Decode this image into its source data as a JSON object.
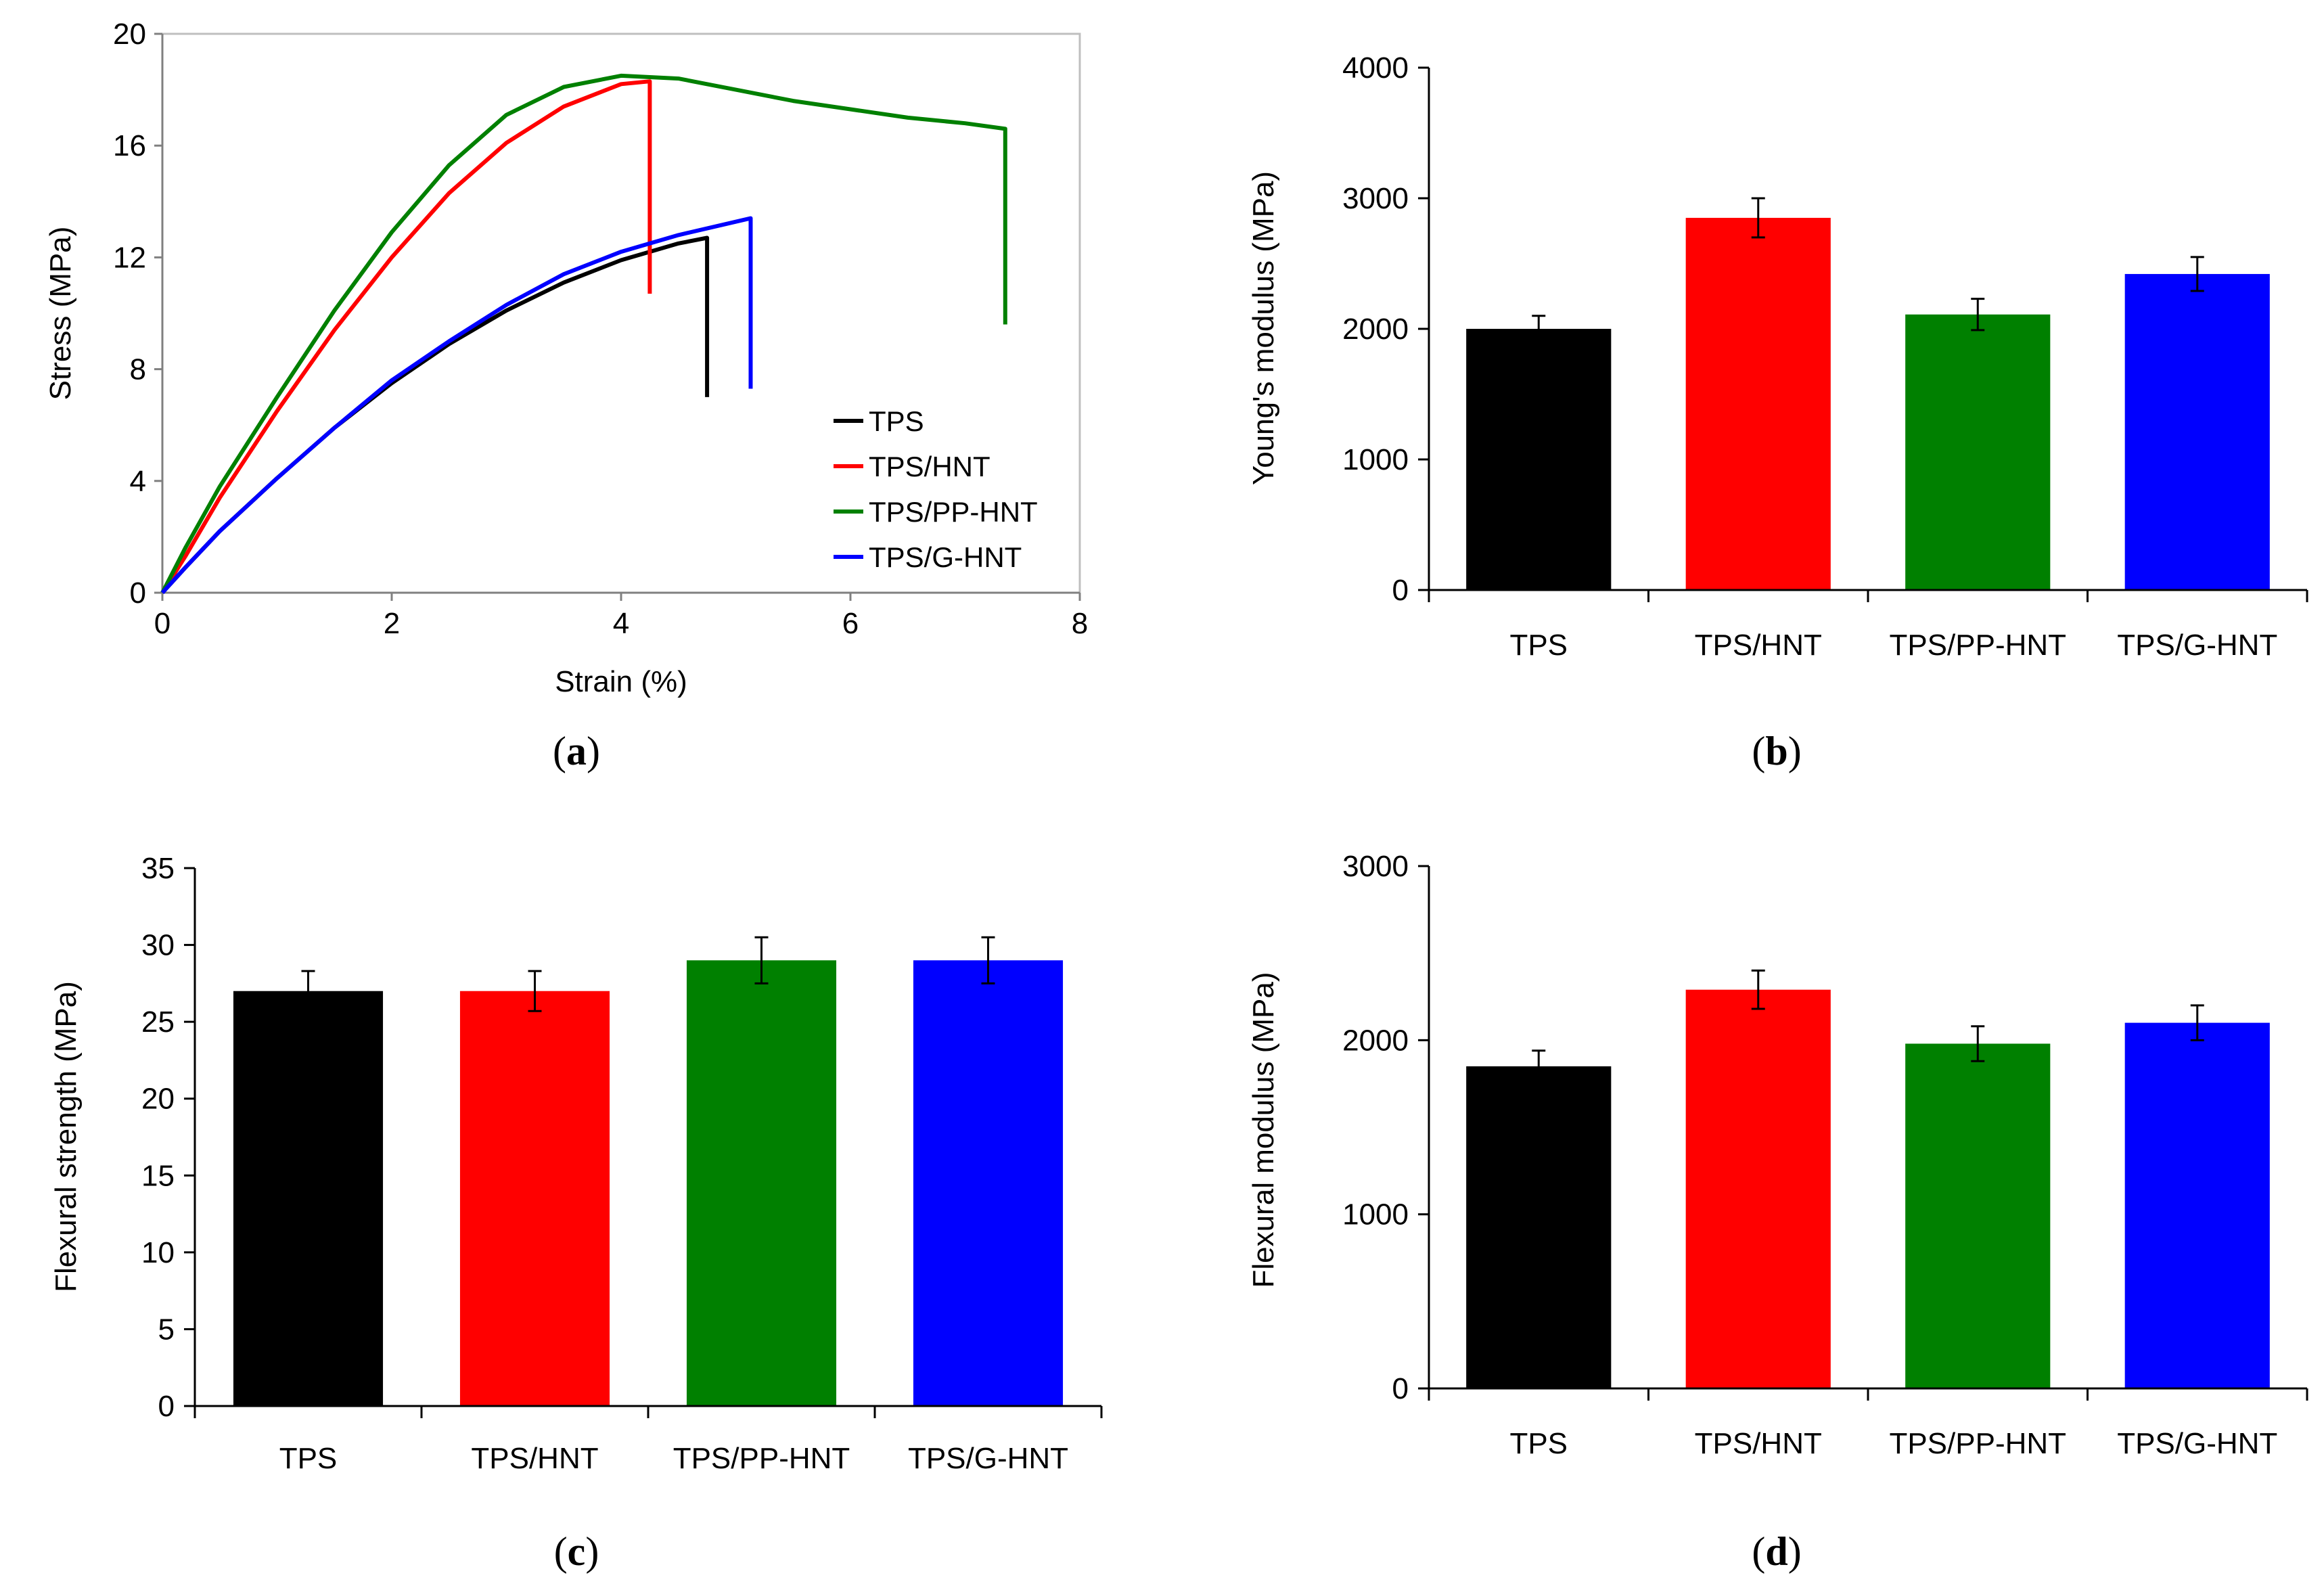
{
  "panel_labels": {
    "a": {
      "open": "(",
      "letter": "a",
      "close": ")"
    },
    "b": {
      "open": "(",
      "letter": "b",
      "close": ")"
    },
    "c": {
      "open": "(",
      "letter": "c",
      "close": ")"
    },
    "d": {
      "open": "(",
      "letter": "d",
      "close": ")"
    }
  },
  "colors": {
    "TPS": "#000000",
    "TPS/HNT": "#ff0000",
    "TPS/PP-HNT": "#008000",
    "TPS/G-HNT": "#0000ff"
  },
  "chart_data": [
    {
      "id": "a",
      "type": "line",
      "title": "",
      "xlabel": "Strain (%)",
      "ylabel": "Stress (MPa)",
      "xlim": [
        0,
        8
      ],
      "ylim": [
        0,
        20
      ],
      "xticks": [
        "0",
        "2",
        "4",
        "6",
        "8"
      ],
      "yticks": [
        "0",
        "4",
        "8",
        "12",
        "16",
        "20"
      ],
      "legend": "inside lower-right",
      "series": [
        {
          "name": "TPS",
          "color": "#000000",
          "x": [
            0,
            0.2,
            0.5,
            1.0,
            1.5,
            2.0,
            2.5,
            3.0,
            3.5,
            4.0,
            4.5,
            4.75,
            4.75
          ],
          "y": [
            0,
            0.9,
            2.2,
            4.1,
            5.9,
            7.5,
            8.9,
            10.1,
            11.1,
            11.9,
            12.5,
            12.7,
            7.0
          ]
        },
        {
          "name": "TPS/HNT",
          "color": "#ff0000",
          "x": [
            0,
            0.2,
            0.5,
            1.0,
            1.5,
            2.0,
            2.5,
            3.0,
            3.5,
            4.0,
            4.25,
            4.25
          ],
          "y": [
            0,
            1.3,
            3.4,
            6.5,
            9.4,
            12.0,
            14.3,
            16.1,
            17.4,
            18.2,
            18.3,
            10.7
          ]
        },
        {
          "name": "TPS/PP-HNT",
          "color": "#008000",
          "x": [
            0,
            0.2,
            0.5,
            1.0,
            1.5,
            2.0,
            2.5,
            3.0,
            3.5,
            4.0,
            4.5,
            5.0,
            5.5,
            6.0,
            6.5,
            7.0,
            7.35,
            7.35
          ],
          "y": [
            0,
            1.6,
            3.8,
            7.0,
            10.1,
            12.9,
            15.3,
            17.1,
            18.1,
            18.5,
            18.4,
            18.0,
            17.6,
            17.3,
            17.0,
            16.8,
            16.6,
            9.6
          ]
        },
        {
          "name": "TPS/G-HNT",
          "color": "#0000ff",
          "x": [
            0,
            0.2,
            0.5,
            1.0,
            1.5,
            2.0,
            2.5,
            3.0,
            3.5,
            4.0,
            4.5,
            5.13,
            5.13
          ],
          "y": [
            0,
            0.9,
            2.2,
            4.1,
            5.9,
            7.6,
            9.0,
            10.3,
            11.4,
            12.2,
            12.8,
            13.4,
            7.3
          ]
        }
      ]
    },
    {
      "id": "b",
      "type": "bar",
      "title": "",
      "xlabel": "",
      "ylabel": "Young's modulus (MPa)",
      "ylim": [
        0,
        4000
      ],
      "yticks": [
        "0",
        "1000",
        "2000",
        "3000",
        "4000"
      ],
      "categories": [
        "TPS",
        "TPS/HNT",
        "TPS/PP-HNT",
        "TPS/G-HNT"
      ],
      "values": [
        2000,
        2850,
        2110,
        2420
      ],
      "errors": [
        100,
        150,
        120,
        130
      ],
      "colors": [
        "#000000",
        "#ff0000",
        "#008000",
        "#0000ff"
      ]
    },
    {
      "id": "c",
      "type": "bar",
      "title": "",
      "xlabel": "",
      "ylabel": "Flexural strength (MPa)",
      "ylim": [
        0,
        35
      ],
      "yticks": [
        "0",
        "5",
        "10",
        "15",
        "20",
        "25",
        "30",
        "35"
      ],
      "categories": [
        "TPS",
        "TPS/HNT",
        "TPS/PP-HNT",
        "TPS/G-HNT"
      ],
      "values": [
        27,
        27,
        29,
        29
      ],
      "errors": [
        1.3,
        1.3,
        1.5,
        1.5
      ],
      "colors": [
        "#000000",
        "#ff0000",
        "#008000",
        "#0000ff"
      ]
    },
    {
      "id": "d",
      "type": "bar",
      "title": "",
      "xlabel": "",
      "ylabel": "Flexural modulus (MPa)",
      "ylim": [
        0,
        3000
      ],
      "yticks": [
        "0",
        "1000",
        "2000",
        "3000"
      ],
      "categories": [
        "TPS",
        "TPS/HNT",
        "TPS/PP-HNT",
        "TPS/G-HNT"
      ],
      "values": [
        1850,
        2290,
        1980,
        2100
      ],
      "errors": [
        90,
        110,
        100,
        100
      ],
      "colors": [
        "#000000",
        "#ff0000",
        "#008000",
        "#0000ff"
      ]
    }
  ]
}
